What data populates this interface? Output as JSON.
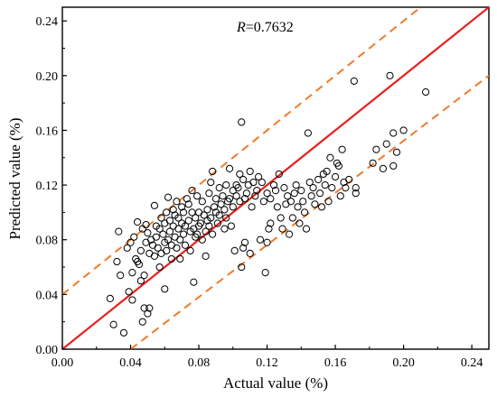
{
  "chart_data": {
    "type": "scatter",
    "xlabel": "Actual value (%)",
    "ylabel": "Predicted value (%)",
    "xlim": [
      0,
      0.25
    ],
    "ylim": [
      0,
      0.25
    ],
    "xticks": [
      "0.00",
      "0.04",
      "0.08",
      "0.12",
      "0.16",
      "0.20",
      "0.24"
    ],
    "yticks": [
      "0.00",
      "0.04",
      "0.08",
      "0.12",
      "0.16",
      "0.20",
      "0.24"
    ],
    "annotation": {
      "symbol": "R",
      "text": "=0.7632"
    },
    "grid": false,
    "lines": [
      {
        "kind": "y=x",
        "color": "#e8201e",
        "style": "solid",
        "points": [
          [
            0,
            0
          ],
          [
            0.25,
            0.25
          ]
        ]
      },
      {
        "kind": "upper bound",
        "color": "#f07b2a",
        "style": "dashed",
        "points": [
          [
            0,
            0.04
          ],
          [
            0.21,
            0.25
          ]
        ]
      },
      {
        "kind": "lower bound",
        "color": "#f07b2a",
        "style": "dashed",
        "points": [
          [
            0.04,
            0
          ],
          [
            0.25,
            0.2
          ]
        ]
      }
    ],
    "points": [
      [
        0.028,
        0.037
      ],
      [
        0.03,
        0.018
      ],
      [
        0.032,
        0.064
      ],
      [
        0.033,
        0.086
      ],
      [
        0.034,
        0.054
      ],
      [
        0.036,
        0.012
      ],
      [
        0.038,
        0.074
      ],
      [
        0.039,
        0.042
      ],
      [
        0.04,
        0.078
      ],
      [
        0.041,
        0.036
      ],
      [
        0.041,
        0.056
      ],
      [
        0.042,
        0.082
      ],
      [
        0.043,
        0.066
      ],
      [
        0.044,
        0.064
      ],
      [
        0.044,
        0.093
      ],
      [
        0.045,
        0.062
      ],
      [
        0.046,
        0.072
      ],
      [
        0.046,
        0.05
      ],
      [
        0.047,
        0.02
      ],
      [
        0.047,
        0.088
      ],
      [
        0.048,
        0.03
      ],
      [
        0.048,
        0.054
      ],
      [
        0.049,
        0.091
      ],
      [
        0.049,
        0.078
      ],
      [
        0.05,
        0.085
      ],
      [
        0.05,
        0.026
      ],
      [
        0.051,
        0.07
      ],
      [
        0.051,
        0.03
      ],
      [
        0.052,
        0.08
      ],
      [
        0.053,
        0.076
      ],
      [
        0.054,
        0.068
      ],
      [
        0.054,
        0.105
      ],
      [
        0.055,
        0.09
      ],
      [
        0.055,
        0.082
      ],
      [
        0.056,
        0.074
      ],
      [
        0.057,
        0.088
      ],
      [
        0.057,
        0.06
      ],
      [
        0.058,
        0.096
      ],
      [
        0.058,
        0.07
      ],
      [
        0.059,
        0.084
      ],
      [
        0.06,
        0.092
      ],
      [
        0.06,
        0.078
      ],
      [
        0.06,
        0.044
      ],
      [
        0.061,
        0.1
      ],
      [
        0.061,
        0.072
      ],
      [
        0.062,
        0.08
      ],
      [
        0.062,
        0.111
      ],
      [
        0.063,
        0.094
      ],
      [
        0.063,
        0.086
      ],
      [
        0.064,
        0.076
      ],
      [
        0.064,
        0.066
      ],
      [
        0.065,
        0.102
      ],
      [
        0.065,
        0.09
      ],
      [
        0.066,
        0.082
      ],
      [
        0.066,
        0.098
      ],
      [
        0.067,
        0.074
      ],
      [
        0.067,
        0.108
      ],
      [
        0.068,
        0.088
      ],
      [
        0.068,
        0.096
      ],
      [
        0.069,
        0.08
      ],
      [
        0.069,
        0.066
      ],
      [
        0.07,
        0.092
      ],
      [
        0.07,
        0.104
      ],
      [
        0.071,
        0.084
      ],
      [
        0.071,
        0.1
      ],
      [
        0.072,
        0.076
      ],
      [
        0.072,
        0.09
      ],
      [
        0.073,
        0.11
      ],
      [
        0.074,
        0.094
      ],
      [
        0.074,
        0.106
      ],
      [
        0.075,
        0.086
      ],
      [
        0.075,
        0.072
      ],
      [
        0.076,
        0.116
      ],
      [
        0.076,
        0.1
      ],
      [
        0.077,
        0.088
      ],
      [
        0.077,
        0.049
      ],
      [
        0.078,
        0.082
      ],
      [
        0.078,
        0.096
      ],
      [
        0.079,
        0.112
      ],
      [
        0.079,
        0.084
      ],
      [
        0.08,
        0.09
      ],
      [
        0.08,
        0.1
      ],
      [
        0.081,
        0.092
      ],
      [
        0.082,
        0.108
      ],
      [
        0.082,
        0.08
      ],
      [
        0.083,
        0.098
      ],
      [
        0.084,
        0.086
      ],
      [
        0.084,
        0.068
      ],
      [
        0.085,
        0.102
      ],
      [
        0.085,
        0.094
      ],
      [
        0.086,
        0.114
      ],
      [
        0.086,
        0.09
      ],
      [
        0.087,
        0.122
      ],
      [
        0.087,
        0.096
      ],
      [
        0.088,
        0.13
      ],
      [
        0.088,
        0.084
      ],
      [
        0.089,
        0.104
      ],
      [
        0.09,
        0.1
      ],
      [
        0.09,
        0.11
      ],
      [
        0.091,
        0.092
      ],
      [
        0.092,
        0.098
      ],
      [
        0.092,
        0.118
      ],
      [
        0.093,
        0.106
      ],
      [
        0.094,
        0.112
      ],
      [
        0.095,
        0.102
      ],
      [
        0.095,
        0.088
      ],
      [
        0.096,
        0.12
      ],
      [
        0.096,
        0.096
      ],
      [
        0.097,
        0.108
      ],
      [
        0.098,
        0.132
      ],
      [
        0.098,
        0.11
      ],
      [
        0.099,
        0.09
      ],
      [
        0.1,
        0.116
      ],
      [
        0.1,
        0.104
      ],
      [
        0.101,
        0.072
      ],
      [
        0.102,
        0.112
      ],
      [
        0.102,
        0.12
      ],
      [
        0.103,
        0.118
      ],
      [
        0.104,
        0.108
      ],
      [
        0.104,
        0.128
      ],
      [
        0.105,
        0.06
      ],
      [
        0.105,
        0.166
      ],
      [
        0.106,
        0.074
      ],
      [
        0.106,
        0.124
      ],
      [
        0.107,
        0.11
      ],
      [
        0.107,
        0.078
      ],
      [
        0.108,
        0.114
      ],
      [
        0.109,
        0.12
      ],
      [
        0.11,
        0.13
      ],
      [
        0.11,
        0.07
      ],
      [
        0.111,
        0.104
      ],
      [
        0.112,
        0.122
      ],
      [
        0.113,
        0.112
      ],
      [
        0.114,
        0.116
      ],
      [
        0.115,
        0.126
      ],
      [
        0.116,
        0.08
      ],
      [
        0.117,
        0.122
      ],
      [
        0.118,
        0.108
      ],
      [
        0.119,
        0.056
      ],
      [
        0.12,
        0.114
      ],
      [
        0.12,
        0.078
      ],
      [
        0.121,
        0.088
      ],
      [
        0.122,
        0.11
      ],
      [
        0.122,
        0.092
      ],
      [
        0.124,
        0.12
      ],
      [
        0.125,
        0.116
      ],
      [
        0.126,
        0.104
      ],
      [
        0.127,
        0.128
      ],
      [
        0.128,
        0.096
      ],
      [
        0.129,
        0.088
      ],
      [
        0.13,
        0.118
      ],
      [
        0.131,
        0.106
      ],
      [
        0.132,
        0.112
      ],
      [
        0.133,
        0.084
      ],
      [
        0.134,
        0.108
      ],
      [
        0.135,
        0.096
      ],
      [
        0.136,
        0.114
      ],
      [
        0.137,
        0.12
      ],
      [
        0.138,
        0.104
      ],
      [
        0.139,
        0.092
      ],
      [
        0.14,
        0.116
      ],
      [
        0.141,
        0.108
      ],
      [
        0.142,
        0.1
      ],
      [
        0.143,
        0.088
      ],
      [
        0.144,
        0.158
      ],
      [
        0.145,
        0.122
      ],
      [
        0.146,
        0.112
      ],
      [
        0.147,
        0.118
      ],
      [
        0.148,
        0.106
      ],
      [
        0.15,
        0.124
      ],
      [
        0.151,
        0.114
      ],
      [
        0.152,
        0.104
      ],
      [
        0.153,
        0.128
      ],
      [
        0.154,
        0.12
      ],
      [
        0.155,
        0.13
      ],
      [
        0.156,
        0.108
      ],
      [
        0.157,
        0.14
      ],
      [
        0.158,
        0.118
      ],
      [
        0.16,
        0.126
      ],
      [
        0.161,
        0.136
      ],
      [
        0.162,
        0.134
      ],
      [
        0.163,
        0.112
      ],
      [
        0.164,
        0.146
      ],
      [
        0.165,
        0.122
      ],
      [
        0.166,
        0.118
      ],
      [
        0.168,
        0.124
      ],
      [
        0.171,
        0.196
      ],
      [
        0.172,
        0.118
      ],
      [
        0.172,
        0.114
      ],
      [
        0.182,
        0.136
      ],
      [
        0.184,
        0.146
      ],
      [
        0.188,
        0.132
      ],
      [
        0.19,
        0.15
      ],
      [
        0.192,
        0.2
      ],
      [
        0.194,
        0.134
      ],
      [
        0.194,
        0.158
      ],
      [
        0.196,
        0.144
      ],
      [
        0.2,
        0.16
      ],
      [
        0.213,
        0.188
      ]
    ]
  }
}
